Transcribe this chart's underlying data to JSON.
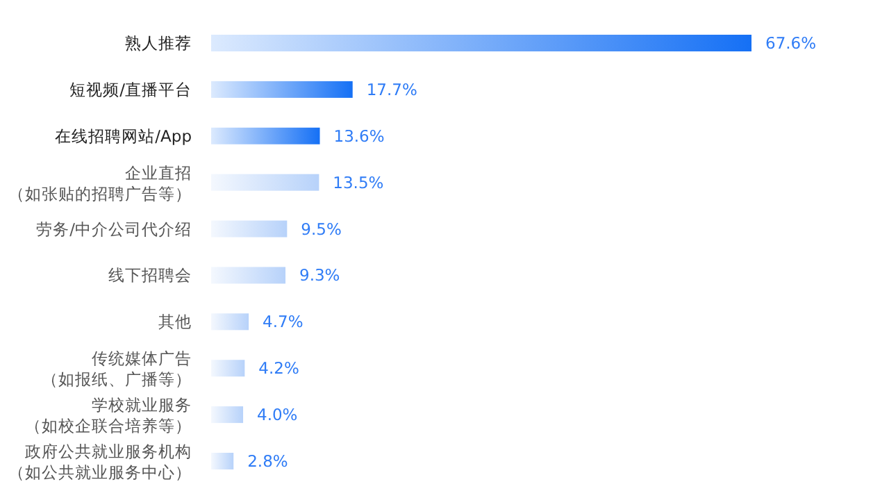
{
  "chart_data": {
    "type": "bar",
    "orientation": "horizontal",
    "value_labels": [
      "67.6%",
      "17.7%",
      "13.6%",
      "13.5%",
      "9.5%",
      "9.3%",
      "4.7%",
      "4.2%",
      "4.0%",
      "2.8%"
    ],
    "categories": [
      "熟人推荐",
      "短视频/直播平台",
      "在线招聘网站/App",
      "企业直招（如张贴的招聘广告等）",
      "劳务/中介公司代介绍",
      "线下招聘会",
      "其他",
      "传统媒体广告（如报纸、广播等）",
      "学校就业服务（如校企联合培养等）",
      "政府公共就业服务机构（如公共就业服务中心）"
    ],
    "values": [
      67.6,
      17.7,
      13.6,
      13.5,
      9.5,
      9.3,
      4.7,
      4.2,
      4.0,
      2.8
    ],
    "colors": [
      "#1570f5",
      "#1570f5",
      "#1570f5",
      "#b7d2fa",
      "#b7d2fa",
      "#b7d2fa",
      "#b7d2fa",
      "#b7d2fa",
      "#b7d2fa",
      "#b7d2fa"
    ]
  }
}
